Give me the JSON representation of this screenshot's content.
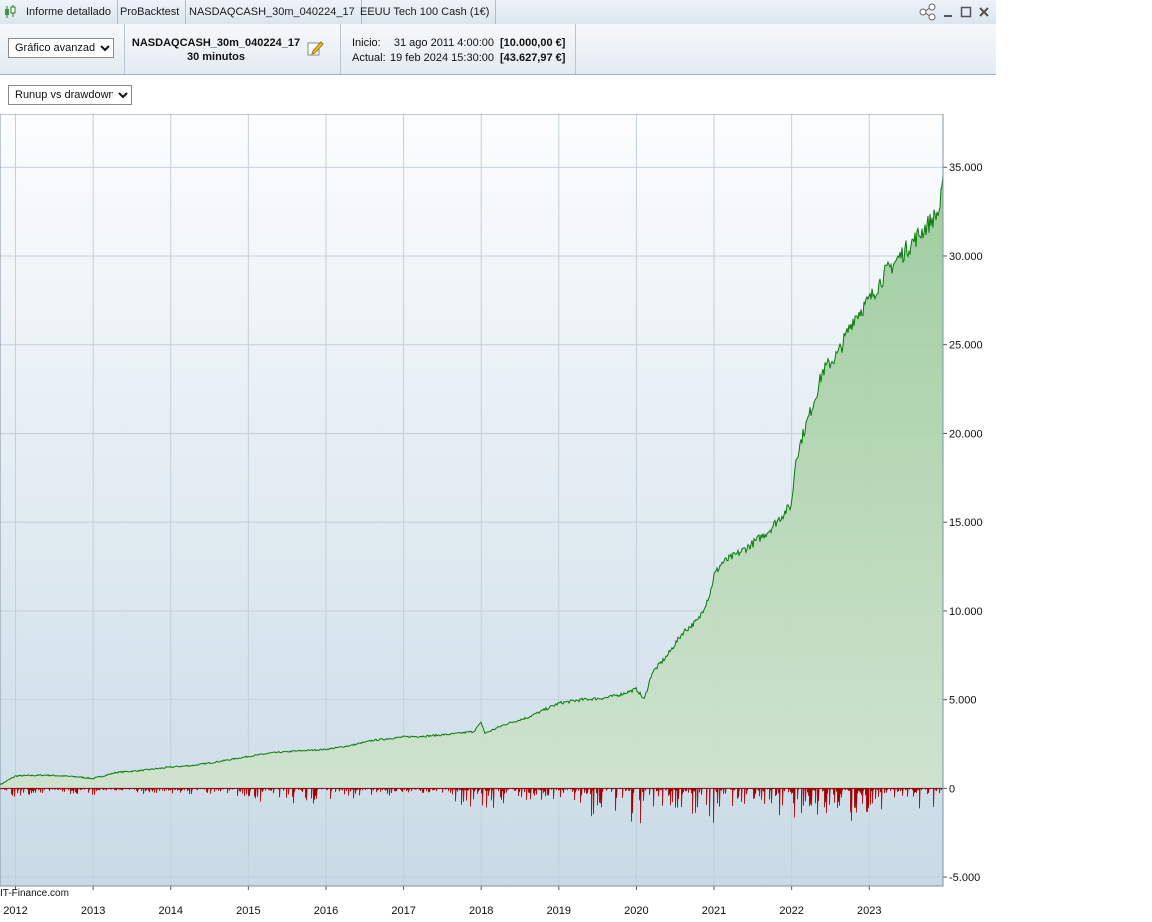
{
  "titlebar": {
    "tabs": [
      "Informe detallado",
      "ProBacktest",
      "NASDAQCASH_30m_040224_17",
      "EEUU Tech 100 Cash (1€)"
    ]
  },
  "header": {
    "chart_select": "Gráfico avanzado",
    "system_name": "NASDAQCASH_30m_040224_17",
    "timeframe": "30 minutos",
    "start_label": "Inicio:",
    "start_date": "31 ago 2011 4:00:00",
    "start_value": "[10.000,00 €]",
    "current_label": "Actual:",
    "current_date": "19 feb 2024 15:30:00",
    "current_value": "[43.627,97 €]"
  },
  "subbar": {
    "view_select": "Runup vs drawdown"
  },
  "watermark": "IT-Finance.com",
  "colors": {
    "runup_line": "#0a7a0a",
    "runup_fill": "#9dcc9a",
    "drawdown": "#a00000",
    "zero_line": "#3050d0"
  },
  "chart_data": {
    "type": "area",
    "title": "",
    "xlabel": "",
    "ylabel": "",
    "x_ticks": [
      "2012",
      "2013",
      "2014",
      "2015",
      "2016",
      "2017",
      "2018",
      "2019",
      "2020",
      "2021",
      "2022",
      "2023"
    ],
    "y_ticks": [
      "35.000",
      "30.000",
      "25.000",
      "20.000",
      "15.000",
      "10.000",
      "5.000",
      "0",
      "-5.000"
    ],
    "xlim": [
      2011.8,
      2023.95
    ],
    "ylim": [
      -5500,
      38000
    ],
    "grid": true,
    "series": [
      {
        "kind": "runup",
        "x": [
          2011.8,
          2012.0,
          2012.4,
          2012.8,
          2013.0,
          2013.3,
          2013.6,
          2014.0,
          2014.3,
          2014.6,
          2015.0,
          2015.3,
          2015.6,
          2016.0,
          2016.3,
          2016.6,
          2017.0,
          2017.3,
          2017.6,
          2017.9,
          2018.0,
          2018.05,
          2018.3,
          2018.6,
          2018.8,
          2019.0,
          2019.3,
          2019.6,
          2019.8,
          2020.0,
          2020.1,
          2020.2,
          2020.4,
          2020.6,
          2020.8,
          2020.95,
          2021.0,
          2021.1,
          2021.3,
          2021.5,
          2021.7,
          2021.9,
          2022.0,
          2022.05,
          2022.15,
          2022.3,
          2022.4,
          2022.6,
          2022.8,
          2023.0,
          2023.2,
          2023.4,
          2023.6,
          2023.8,
          2023.9,
          2023.95
        ],
        "y": [
          200,
          700,
          750,
          650,
          550,
          900,
          1000,
          1200,
          1300,
          1500,
          1800,
          2000,
          2100,
          2200,
          2400,
          2700,
          2900,
          2950,
          3050,
          3200,
          3700,
          3100,
          3600,
          4000,
          4400,
          4800,
          5000,
          5100,
          5300,
          5600,
          5000,
          6500,
          7500,
          8800,
          9500,
          11000,
          12000,
          12700,
          13200,
          13800,
          14500,
          15500,
          16000,
          18500,
          20000,
          22000,
          23500,
          24500,
          26500,
          27500,
          29000,
          30000,
          31000,
          32000,
          32500,
          34000
        ]
      },
      {
        "kind": "drawdown",
        "x": [
          2012.0,
          2012.5,
          2013.0,
          2013.5,
          2014.0,
          2014.5,
          2015.0,
          2015.57,
          2015.9,
          2016.3,
          2016.7,
          2017.0,
          2017.5,
          2018.1,
          2018.2,
          2018.5,
          2019.0,
          2019.3,
          2019.5,
          2020.05,
          2020.3,
          2020.6,
          2021.0,
          2021.3,
          2021.6,
          2021.95,
          2022.2,
          2022.5,
          2022.65,
          2022.9,
          2023.1,
          2023.3,
          2023.6,
          2023.9
        ],
        "y": [
          -600,
          -300,
          -500,
          -300,
          -400,
          -300,
          -500,
          -1500,
          -800,
          -600,
          -500,
          -300,
          -300,
          -1900,
          -1200,
          -800,
          -700,
          -1400,
          -1800,
          -2100,
          -1000,
          -1300,
          -2000,
          -1500,
          -1700,
          -2000,
          -1800,
          -1600,
          -1900,
          -1800,
          -1300,
          -1500,
          -1200,
          -1300
        ]
      }
    ]
  }
}
